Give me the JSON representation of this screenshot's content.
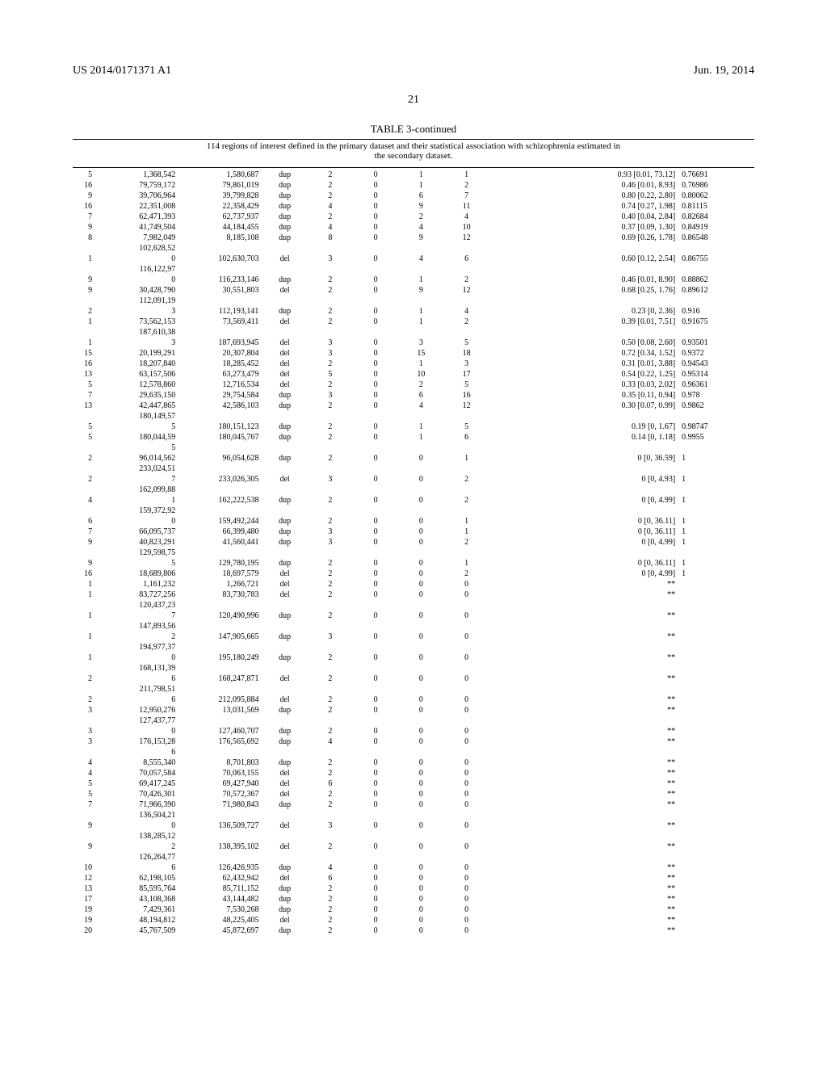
{
  "header": {
    "left": "US 2014/0171371 A1",
    "right": "Jun. 19, 2014",
    "page_number": "21"
  },
  "table": {
    "title": "TABLE 3-continued",
    "caption_line1": "114 regions of interest defined in the primary dataset and their statistical association with schizophrenia estimated in",
    "caption_line2": "the secondary dataset.",
    "rows": [
      [
        "5",
        "1,368,542",
        "1,580,687",
        "dup",
        "2",
        "0",
        "1",
        "1",
        "0.93 [0.01, 73.12]",
        "0.76691"
      ],
      [
        "16",
        "79,759,172",
        "79,861,019",
        "dup",
        "2",
        "0",
        "1",
        "2",
        "0.46 [0.01, 8.93]",
        "0.76986"
      ],
      [
        "9",
        "39,706,964",
        "39,799,828",
        "dup",
        "2",
        "0",
        "6",
        "7",
        "0.80 [0.22, 2.80]",
        "0.80062"
      ],
      [
        "16",
        "22,351,008",
        "22,358,429",
        "dup",
        "4",
        "0",
        "9",
        "11",
        "0.74 [0.27, 1.98]",
        "0.81115"
      ],
      [
        "7",
        "62,471,393",
        "62,737,937",
        "dup",
        "2",
        "0",
        "2",
        "4",
        "0.40 [0.04, 2.84]",
        "0.82684"
      ],
      [
        "9",
        "41,749,504",
        "44,184,455",
        "dup",
        "4",
        "0",
        "4",
        "10",
        "0.37 [0.09, 1.30]",
        "0.84919"
      ],
      [
        "8",
        "7,982,049",
        "8,185,108",
        "dup",
        "8",
        "0",
        "9",
        "12",
        "0.69 [0.26, 1.78]",
        "0.86548"
      ],
      [
        "",
        "102,628,52",
        "",
        "",
        "",
        "",
        "",
        "",
        "",
        ""
      ],
      [
        "1",
        "0",
        "102,630,703",
        "del",
        "3",
        "0",
        "4",
        "6",
        "0.60 [0.12, 2.54]",
        "0.86755"
      ],
      [
        "",
        "116,122,97",
        "",
        "",
        "",
        "",
        "",
        "",
        "",
        ""
      ],
      [
        "9",
        "0",
        "116,233,146",
        "dup",
        "2",
        "0",
        "1",
        "2",
        "0.46 [0.01, 8.90]",
        "0.88862"
      ],
      [
        "9",
        "30,428,790",
        "30,551,803",
        "del",
        "2",
        "0",
        "9",
        "12",
        "0.68 [0.25, 1.76]",
        "0.89612"
      ],
      [
        "",
        "112,091,19",
        "",
        "",
        "",
        "",
        "",
        "",
        "",
        ""
      ],
      [
        "2",
        "3",
        "112,193,141",
        "dup",
        "2",
        "0",
        "1",
        "4",
        "0.23 [0, 2.36]",
        "0.916"
      ],
      [
        "1",
        "73,562,153",
        "73,569,411",
        "del",
        "2",
        "0",
        "1",
        "2",
        "0.39 [0.01, 7.51]",
        "0.91675"
      ],
      [
        "",
        "187,610,38",
        "",
        "",
        "",
        "",
        "",
        "",
        "",
        ""
      ],
      [
        "1",
        "3",
        "187,693,945",
        "del",
        "3",
        "0",
        "3",
        "5",
        "0.50 [0.08, 2.60]",
        "0.93501"
      ],
      [
        "15",
        "20,199,291",
        "20,307,804",
        "del",
        "3",
        "0",
        "15",
        "18",
        "0.72 [0.34, 1.52]",
        "0.9372"
      ],
      [
        "16",
        "18,207,840",
        "18,285,452",
        "del",
        "2",
        "0",
        "1",
        "3",
        "0.31 [0.01, 3.88]",
        "0.94543"
      ],
      [
        "13",
        "63,157,506",
        "63,273,479",
        "del",
        "5",
        "0",
        "10",
        "17",
        "0.54 [0.22, 1.25]",
        "0.95314"
      ],
      [
        "5",
        "12,578,860",
        "12,716,534",
        "del",
        "2",
        "0",
        "2",
        "5",
        "0.33 [0.03, 2.02]",
        "0.96361"
      ],
      [
        "7",
        "29,635,150",
        "29,754,584",
        "dup",
        "3",
        "0",
        "6",
        "16",
        "0.35 [0.11, 0.94]",
        "0.978"
      ],
      [
        "13",
        "42,447,865",
        "42,586,103",
        "dup",
        "2",
        "0",
        "4",
        "12",
        "0.30 [0.07, 0.99]",
        "0.9862"
      ],
      [
        "",
        "180,149,57",
        "",
        "",
        "",
        "",
        "",
        "",
        "",
        ""
      ],
      [
        "5",
        "5",
        "180,151,123",
        "dup",
        "2",
        "0",
        "1",
        "5",
        "0.19 [0, 1.67]",
        "0.98747"
      ],
      [
        "5",
        "180,044,59",
        "180,045,767",
        "dup",
        "2",
        "0",
        "1",
        "6",
        "0.14 [0, 1.18]",
        "0.9955"
      ],
      [
        "",
        "5",
        "",
        "",
        "",
        "",
        "",
        "",
        "",
        ""
      ],
      [
        "2",
        "96,014,562",
        "96,054,628",
        "dup",
        "2",
        "0",
        "0",
        "1",
        "0 [0, 36.59]",
        "1"
      ],
      [
        "",
        "233,024,51",
        "",
        "",
        "",
        "",
        "",
        "",
        "",
        ""
      ],
      [
        "2",
        "7",
        "233,026,305",
        "del",
        "3",
        "0",
        "0",
        "2",
        "0 [0, 4.93]",
        "1"
      ],
      [
        "",
        "162,099,88",
        "",
        "",
        "",
        "",
        "",
        "",
        "",
        ""
      ],
      [
        "4",
        "1",
        "162,222,538",
        "dup",
        "2",
        "0",
        "0",
        "2",
        "0 [0, 4.99]",
        "1"
      ],
      [
        "",
        "159,372,92",
        "",
        "",
        "",
        "",
        "",
        "",
        "",
        ""
      ],
      [
        "6",
        "0",
        "159,492,244",
        "dup",
        "2",
        "0",
        "0",
        "1",
        "0 [0, 36.11]",
        "1"
      ],
      [
        "7",
        "66,095,737",
        "66,399,480",
        "dup",
        "3",
        "0",
        "0",
        "1",
        "0 [0, 36.11]",
        "1"
      ],
      [
        "9",
        "40,823,291",
        "41,560,441",
        "dup",
        "3",
        "0",
        "0",
        "2",
        "0 [0, 4.99]",
        "1"
      ],
      [
        "",
        "129,598,75",
        "",
        "",
        "",
        "",
        "",
        "",
        "",
        ""
      ],
      [
        "9",
        "5",
        "129,780,195",
        "dup",
        "2",
        "0",
        "0",
        "1",
        "0 [0, 36.11]",
        "1"
      ],
      [
        "16",
        "18,689,806",
        "18,697,579",
        "del",
        "2",
        "0",
        "0",
        "2",
        "0 [0, 4.99]",
        "1"
      ],
      [
        "1",
        "1,161,232",
        "1,266,721",
        "del",
        "2",
        "0",
        "0",
        "0",
        "**",
        ""
      ],
      [
        "1",
        "83,727,256",
        "83,730,783",
        "del",
        "2",
        "0",
        "0",
        "0",
        "**",
        ""
      ],
      [
        "",
        "120,437,23",
        "",
        "",
        "",
        "",
        "",
        "",
        "",
        ""
      ],
      [
        "1",
        "7",
        "120,490,996",
        "dup",
        "2",
        "0",
        "0",
        "0",
        "**",
        ""
      ],
      [
        "",
        "147,893,56",
        "",
        "",
        "",
        "",
        "",
        "",
        "",
        ""
      ],
      [
        "1",
        "2",
        "147,905,665",
        "dup",
        "3",
        "0",
        "0",
        "0",
        "**",
        ""
      ],
      [
        "",
        "194,977,37",
        "",
        "",
        "",
        "",
        "",
        "",
        "",
        ""
      ],
      [
        "1",
        "0",
        "195,180,249",
        "dup",
        "2",
        "0",
        "0",
        "0",
        "**",
        ""
      ],
      [
        "",
        "168,131,39",
        "",
        "",
        "",
        "",
        "",
        "",
        "",
        ""
      ],
      [
        "2",
        "6",
        "168,247,871",
        "del",
        "2",
        "0",
        "0",
        "0",
        "**",
        ""
      ],
      [
        "",
        "211,798,51",
        "",
        "",
        "",
        "",
        "",
        "",
        "",
        ""
      ],
      [
        "2",
        "6",
        "212,095,884",
        "del",
        "2",
        "0",
        "0",
        "0",
        "**",
        ""
      ],
      [
        "3",
        "12,950,276",
        "13,031,569",
        "dup",
        "2",
        "0",
        "0",
        "0",
        "**",
        ""
      ],
      [
        "",
        "127,437,77",
        "",
        "",
        "",
        "",
        "",
        "",
        "",
        ""
      ],
      [
        "3",
        "0",
        "127,460,707",
        "dup",
        "2",
        "0",
        "0",
        "0",
        "**",
        ""
      ],
      [
        "3",
        "176,153,28",
        "176,565,692",
        "dup",
        "4",
        "0",
        "0",
        "0",
        "**",
        ""
      ],
      [
        "",
        "6",
        "",
        "",
        "",
        "",
        "",
        "",
        "",
        ""
      ],
      [
        "4",
        "8,555,340",
        "8,701,803",
        "dup",
        "2",
        "0",
        "0",
        "0",
        "**",
        ""
      ],
      [
        "4",
        "70,057,584",
        "70,063,155",
        "del",
        "2",
        "0",
        "0",
        "0",
        "**",
        ""
      ],
      [
        "5",
        "69,417,245",
        "69,427,940",
        "del",
        "6",
        "0",
        "0",
        "0",
        "**",
        ""
      ],
      [
        "5",
        "70,426,301",
        "70,572,367",
        "del",
        "2",
        "0",
        "0",
        "0",
        "**",
        ""
      ],
      [
        "7",
        "71,966,390",
        "71,980,843",
        "dup",
        "2",
        "0",
        "0",
        "0",
        "**",
        ""
      ],
      [
        "",
        "136,504,21",
        "",
        "",
        "",
        "",
        "",
        "",
        "",
        ""
      ],
      [
        "9",
        "0",
        "136,509,727",
        "del",
        "3",
        "0",
        "0",
        "0",
        "**",
        ""
      ],
      [
        "",
        "138,285,12",
        "",
        "",
        "",
        "",
        "",
        "",
        "",
        ""
      ],
      [
        "9",
        "2",
        "138,395,102",
        "del",
        "2",
        "0",
        "0",
        "0",
        "**",
        ""
      ],
      [
        "",
        "126,264,77",
        "",
        "",
        "",
        "",
        "",
        "",
        "",
        ""
      ],
      [
        "10",
        "6",
        "126,426,935",
        "dup",
        "4",
        "0",
        "0",
        "0",
        "**",
        ""
      ],
      [
        "12",
        "62,198,105",
        "62,432,942",
        "del",
        "6",
        "0",
        "0",
        "0",
        "**",
        ""
      ],
      [
        "13",
        "85,595,764",
        "85,711,152",
        "dup",
        "2",
        "0",
        "0",
        "0",
        "**",
        ""
      ],
      [
        "17",
        "43,108,368",
        "43,144,482",
        "dup",
        "2",
        "0",
        "0",
        "0",
        "**",
        ""
      ],
      [
        "19",
        "7,429,361",
        "7,530,268",
        "dup",
        "2",
        "0",
        "0",
        "0",
        "**",
        ""
      ],
      [
        "19",
        "48,194,812",
        "48,225,405",
        "del",
        "2",
        "0",
        "0",
        "0",
        "**",
        ""
      ],
      [
        "20",
        "45,767,509",
        "45,872,697",
        "dup",
        "2",
        "0",
        "0",
        "0",
        "**",
        ""
      ]
    ]
  }
}
